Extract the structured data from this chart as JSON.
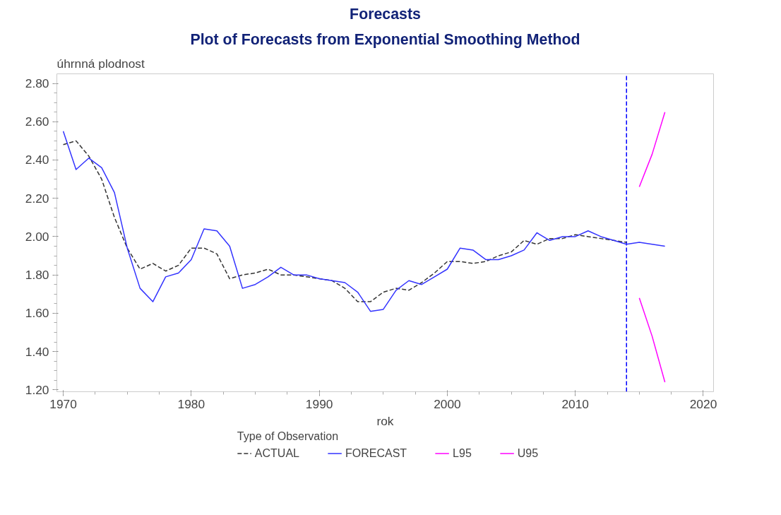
{
  "chart_data": {
    "type": "line",
    "title": "Forecasts",
    "subtitle": "Plot of Forecasts from Exponential Smoothing Method",
    "xlabel": "rok",
    "ylabel": "úhrnná plodnost",
    "legend_title": "Type of Observation",
    "xlim": [
      1969.5,
      2020.8
    ],
    "xticks": [
      1970,
      1980,
      1990,
      2000,
      2010,
      2020
    ],
    "ylim": [
      1.19,
      2.85
    ],
    "yticks": [
      {
        "value": 1.2,
        "label": "1.20"
      },
      {
        "value": 1.4,
        "label": "1.40"
      },
      {
        "value": 1.6,
        "label": "1.60"
      },
      {
        "value": 1.8,
        "label": "1.80"
      },
      {
        "value": 2.0,
        "label": "2.00"
      },
      {
        "value": 2.2,
        "label": "2.20"
      },
      {
        "value": 2.4,
        "label": "2.40"
      },
      {
        "value": 2.6,
        "label": "2.60"
      },
      {
        "value": 2.8,
        "label": "2.80"
      }
    ],
    "grid": false,
    "legend": "bottom",
    "ref_lines": [
      {
        "axis": "x",
        "value": 2014,
        "label": null,
        "color": "#0000ff",
        "line_style": "dashed"
      }
    ],
    "series": [
      {
        "name": "ACTUAL",
        "color": "#333333",
        "line_style": "dashed",
        "x": [
          1970,
          1971,
          1972,
          1973,
          1974,
          1975,
          1976,
          1977,
          1978,
          1979,
          1980,
          1981,
          1982,
          1983,
          1984,
          1985,
          1986,
          1987,
          1988,
          1989,
          1990,
          1991,
          1992,
          1993,
          1994,
          1995,
          1996,
          1997,
          1998,
          1999,
          2000,
          2001,
          2002,
          2003,
          2004,
          2005,
          2006,
          2007,
          2008,
          2009,
          2010,
          2011,
          2012,
          2013,
          2014
        ],
        "values": [
          2.48,
          2.5,
          2.42,
          2.3,
          2.1,
          1.94,
          1.83,
          1.86,
          1.82,
          1.85,
          1.94,
          1.94,
          1.91,
          1.78,
          1.8,
          1.81,
          1.83,
          1.8,
          1.8,
          1.79,
          1.78,
          1.77,
          1.73,
          1.66,
          1.66,
          1.71,
          1.73,
          1.72,
          1.76,
          1.81,
          1.87,
          1.87,
          1.86,
          1.87,
          1.9,
          1.92,
          1.98,
          1.96,
          1.99,
          1.99,
          2.01,
          2.0,
          1.99,
          1.98,
          1.97
        ]
      },
      {
        "name": "FORECAST",
        "color": "#3333ff",
        "line_style": "solid",
        "x": [
          1970,
          1971,
          1972,
          1973,
          1974,
          1975,
          1976,
          1977,
          1978,
          1979,
          1980,
          1981,
          1982,
          1983,
          1984,
          1985,
          1986,
          1987,
          1988,
          1989,
          1990,
          1991,
          1992,
          1993,
          1994,
          1995,
          1996,
          1997,
          1998,
          1999,
          2000,
          2001,
          2002,
          2003,
          2004,
          2005,
          2006,
          2007,
          2008,
          2009,
          2010,
          2011,
          2012,
          2013,
          2014,
          2015,
          2016,
          2017
        ],
        "values": [
          2.55,
          2.35,
          2.41,
          2.36,
          2.23,
          1.94,
          1.73,
          1.66,
          1.79,
          1.81,
          1.88,
          2.04,
          2.03,
          1.95,
          1.73,
          1.75,
          1.79,
          1.84,
          1.8,
          1.8,
          1.78,
          1.77,
          1.76,
          1.71,
          1.61,
          1.62,
          1.72,
          1.77,
          1.75,
          1.79,
          1.83,
          1.94,
          1.93,
          1.88,
          1.88,
          1.9,
          1.93,
          2.02,
          1.98,
          2.0,
          2.0,
          2.03,
          2.0,
          1.98,
          1.96,
          1.97,
          1.96,
          1.95
        ]
      },
      {
        "name": "L95",
        "color": "#ff00ff",
        "line_style": "solid",
        "x": [
          2015,
          2016,
          2017
        ],
        "values": [
          1.68,
          1.48,
          1.24
        ]
      },
      {
        "name": "U95",
        "color": "#ff00ff",
        "line_style": "solid",
        "x": [
          2015,
          2016,
          2017
        ],
        "values": [
          2.26,
          2.43,
          2.65
        ]
      }
    ]
  }
}
